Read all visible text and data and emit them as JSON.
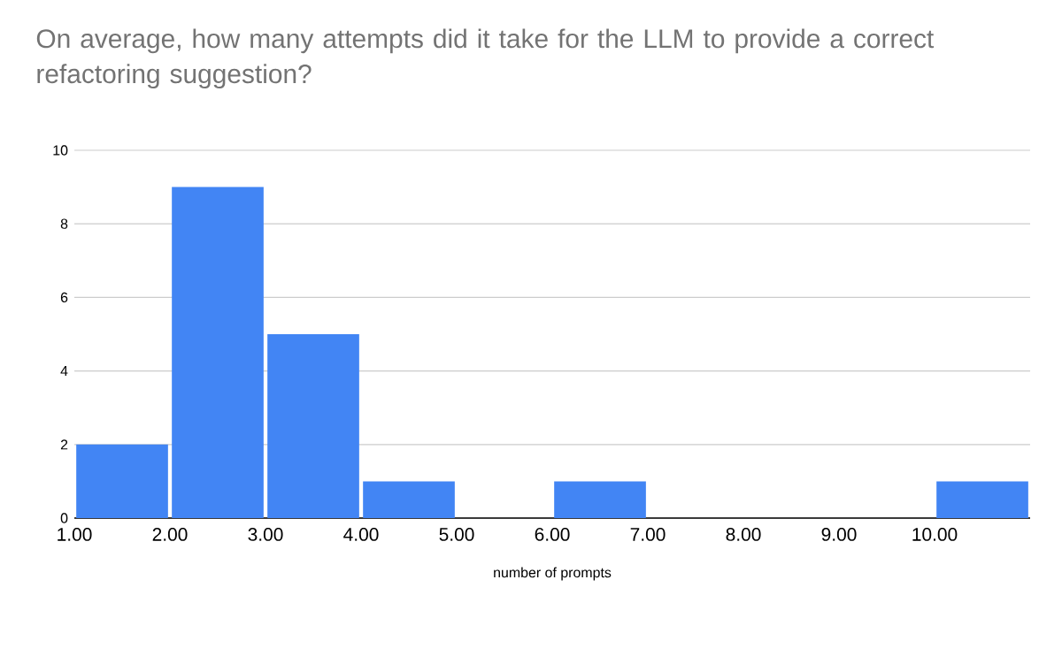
{
  "chart_data": {
    "type": "histogram",
    "title": "On average, how many attempts did it take for the LLM to provide a correct refactoring suggestion?",
    "xlabel": "number of prompts",
    "bins": [
      1,
      2,
      3,
      4,
      5,
      6,
      7,
      8,
      9,
      10,
      11
    ],
    "values": [
      2,
      9,
      5,
      1,
      0,
      1,
      0,
      0,
      0,
      1
    ],
    "color": "#4285f4",
    "xlim": [
      1,
      11
    ],
    "xticks": [
      {
        "value": 1,
        "label": "1.00"
      },
      {
        "value": 2,
        "label": "2.00"
      },
      {
        "value": 3,
        "label": "3.00"
      },
      {
        "value": 4,
        "label": "4.00"
      },
      {
        "value": 5,
        "label": "5.00"
      },
      {
        "value": 6,
        "label": "6.00"
      },
      {
        "value": 7,
        "label": "7.00"
      },
      {
        "value": 8,
        "label": "8.00"
      },
      {
        "value": 9,
        "label": "9.00"
      },
      {
        "value": 10,
        "label": "10.00"
      }
    ],
    "ylim": [
      0,
      10
    ],
    "yticks": [
      0,
      2,
      4,
      6,
      8,
      10
    ],
    "grid": "y"
  }
}
